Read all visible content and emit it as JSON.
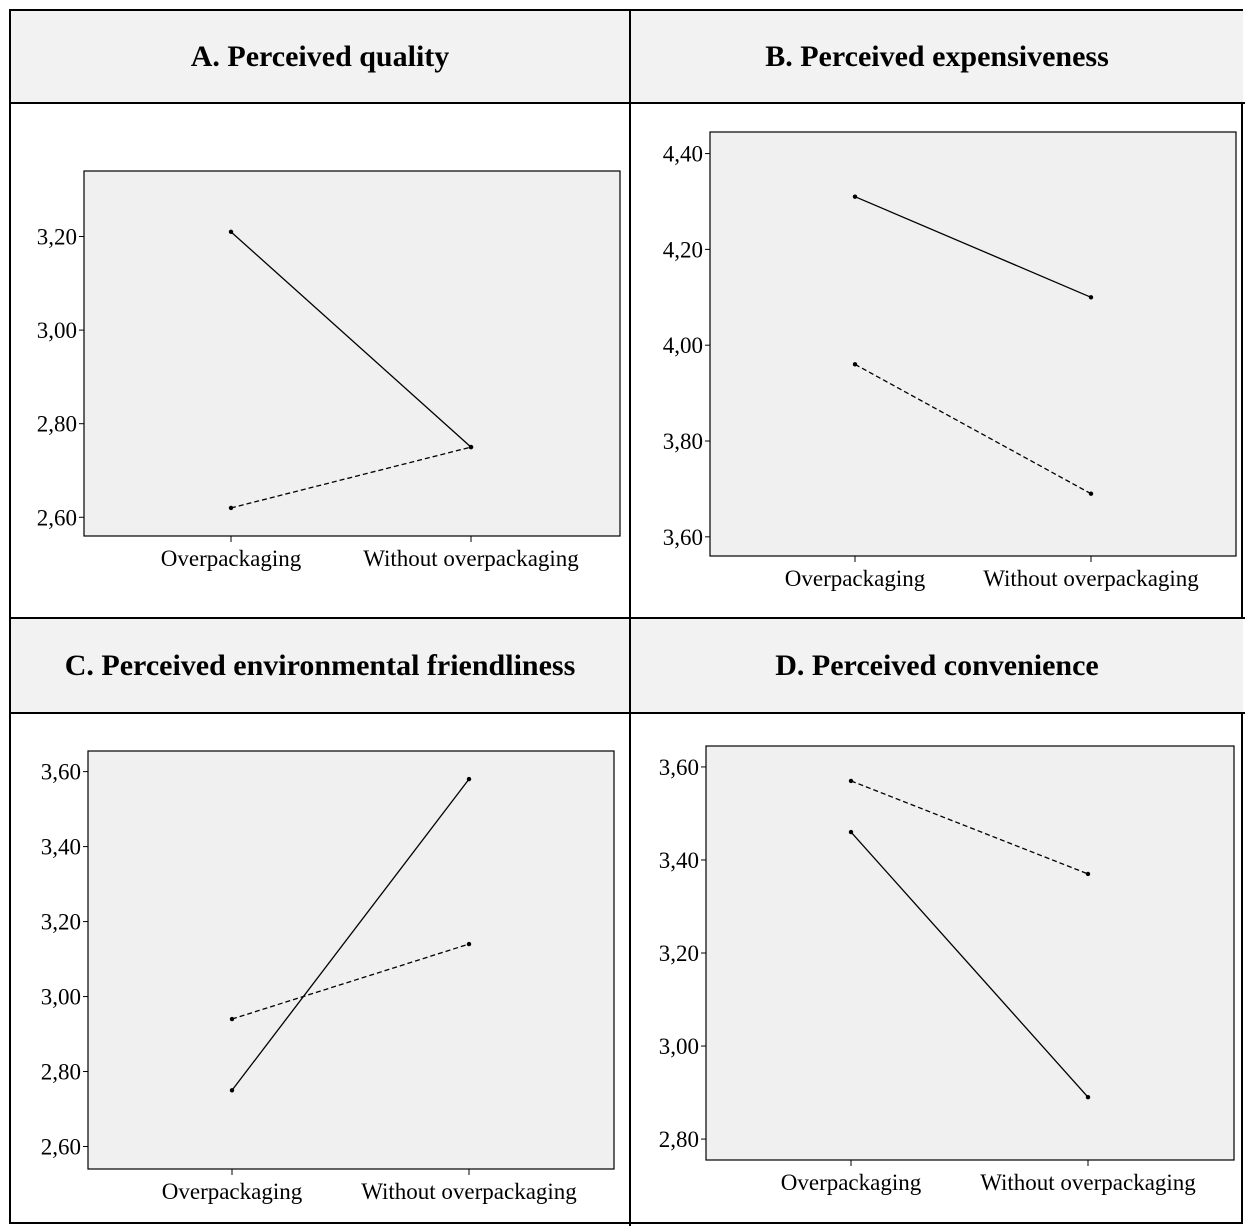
{
  "colors": {
    "plot_bg": "#f0f0f0",
    "header_bg": "#f2f2f2",
    "line": "#000000"
  },
  "headers": {
    "a": "A. Perceived quality",
    "b": "B. Perceived expensiveness",
    "c": "C. Perceived environmental friendliness",
    "d": "D. Perceived convenience"
  },
  "chart_data": [
    {
      "type": "line",
      "title": "A. Perceived quality",
      "categories": [
        "Overpackaging",
        "Without overpackaging"
      ],
      "ylim": [
        2.56,
        3.34
      ],
      "yticks": [
        2.6,
        2.8,
        3.0,
        3.2
      ],
      "ytick_labels": [
        "2,60",
        "2,80",
        "3,00",
        "3,20"
      ],
      "grid": false,
      "series": [
        {
          "style": "solid",
          "values": [
            3.21,
            2.75
          ]
        },
        {
          "style": "dashed",
          "values": [
            2.62,
            2.75
          ]
        }
      ]
    },
    {
      "type": "line",
      "title": "B. Perceived expensiveness",
      "categories": [
        "Overpackaging",
        "Without overpackaging"
      ],
      "ylim": [
        3.56,
        4.445
      ],
      "yticks": [
        3.6,
        3.8,
        4.0,
        4.2,
        4.4
      ],
      "ytick_labels": [
        "3,60",
        "3,80",
        "4,00",
        "4,20",
        "4,40"
      ],
      "grid": false,
      "series": [
        {
          "style": "solid",
          "values": [
            4.31,
            4.1
          ]
        },
        {
          "style": "dashed",
          "values": [
            3.96,
            3.69
          ]
        }
      ]
    },
    {
      "type": "line",
      "title": "C. Perceived environmental friendliness",
      "categories": [
        "Overpackaging",
        "Without overpackaging"
      ],
      "ylim": [
        2.54,
        3.655
      ],
      "yticks": [
        2.6,
        2.8,
        3.0,
        3.2,
        3.4,
        3.6
      ],
      "ytick_labels": [
        "2,60",
        "2,80",
        "3,00",
        "3,20",
        "3,40",
        "3,60"
      ],
      "grid": false,
      "series": [
        {
          "style": "solid",
          "values": [
            2.75,
            3.58
          ]
        },
        {
          "style": "dashed",
          "values": [
            2.94,
            3.14
          ]
        }
      ]
    },
    {
      "type": "line",
      "title": "D. Perceived convenience",
      "categories": [
        "Overpackaging",
        "Without overpackaging"
      ],
      "ylim": [
        2.755,
        3.645
      ],
      "yticks": [
        2.8,
        3.0,
        3.2,
        3.4,
        3.6
      ],
      "ytick_labels": [
        "2,80",
        "3,00",
        "3,20",
        "3,40",
        "3,60"
      ],
      "grid": false,
      "series": [
        {
          "style": "solid",
          "values": [
            3.46,
            2.89
          ]
        },
        {
          "style": "dashed",
          "values": [
            3.57,
            3.37
          ]
        }
      ]
    }
  ]
}
